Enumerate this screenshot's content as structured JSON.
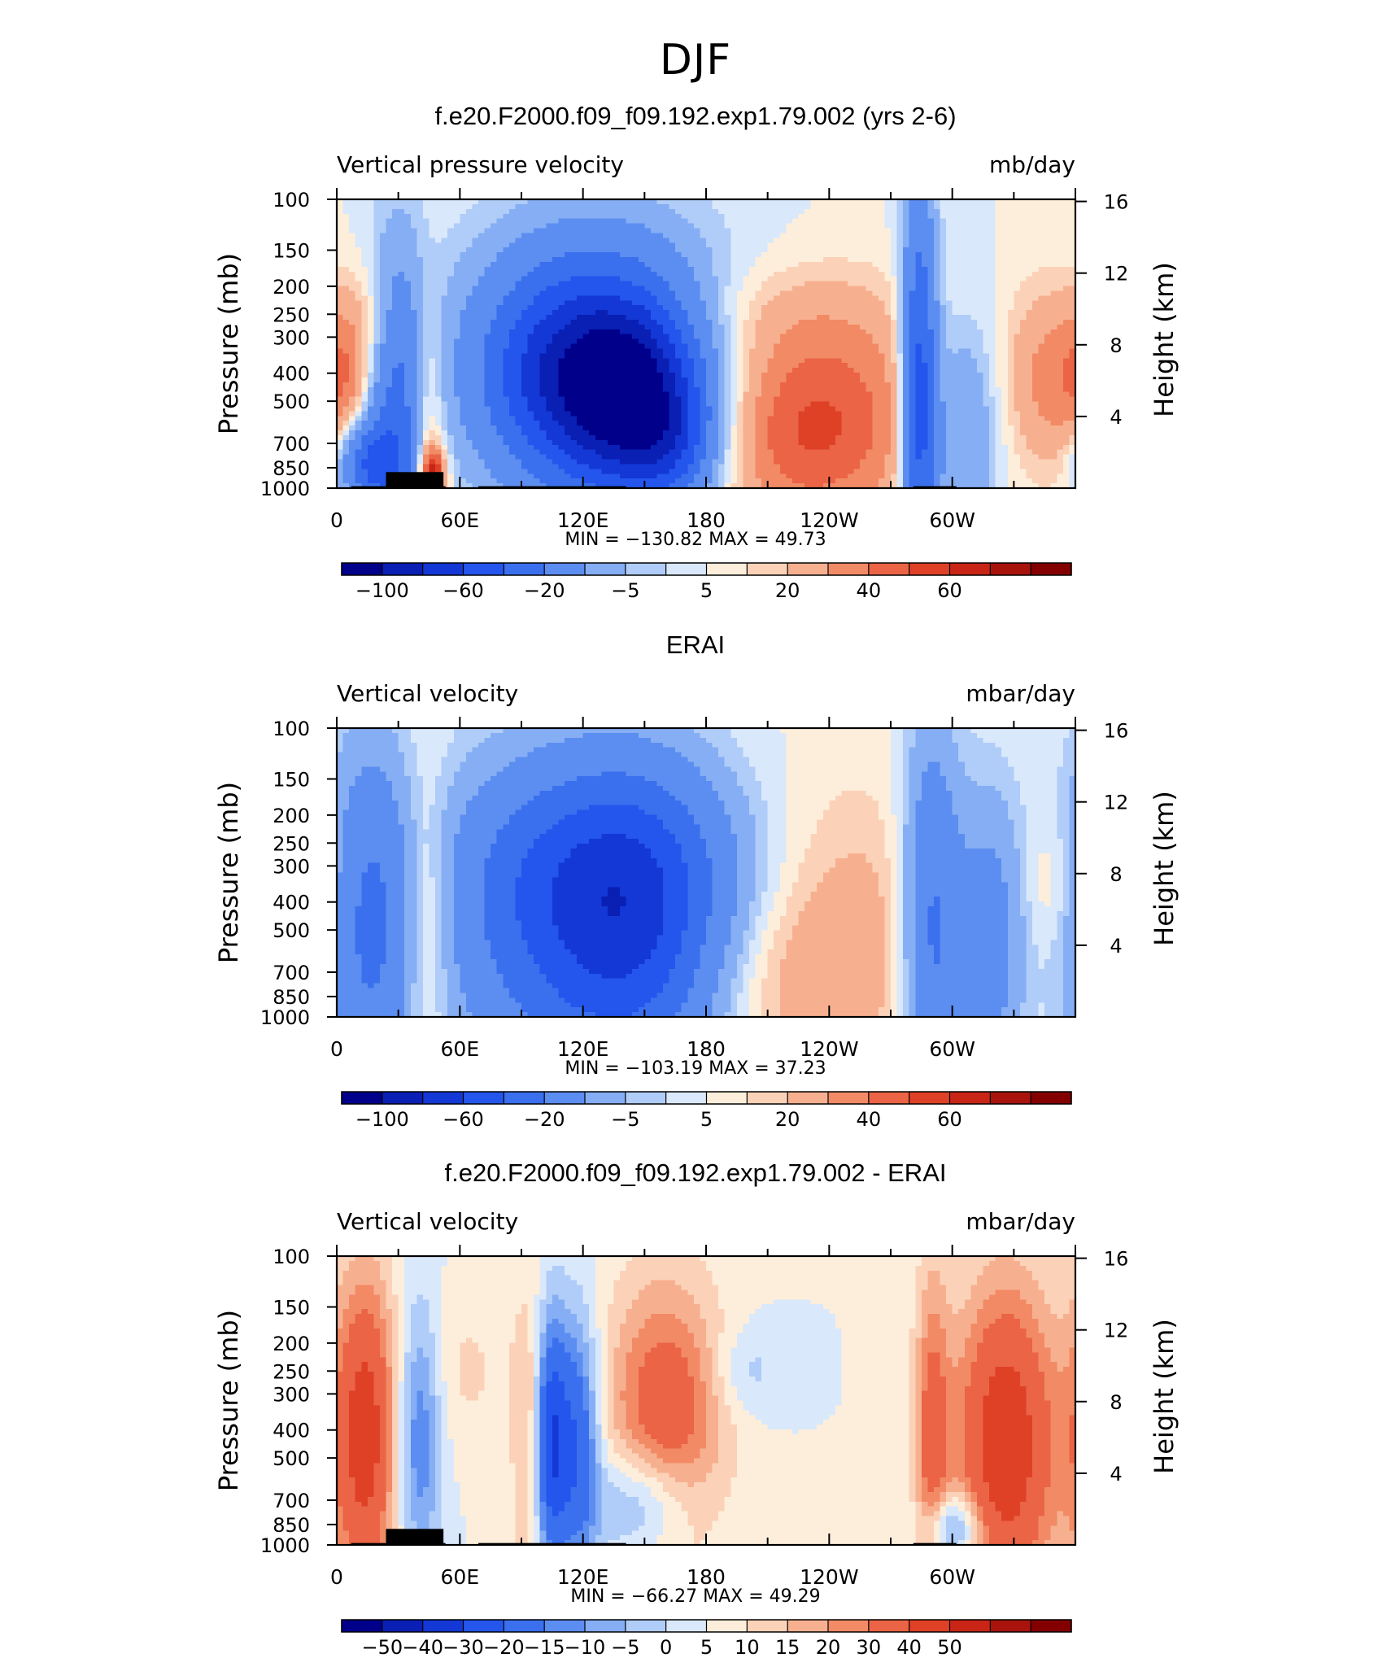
{
  "figure": {
    "main_title": "DJF"
  },
  "colors": {
    "cool": [
      "#00008b",
      "#0a1fb4",
      "#1338d6",
      "#2455ec",
      "#3a70ee",
      "#5c8df0",
      "#85aef4",
      "#b0ccf8",
      "#d9e8fb"
    ],
    "warm": [
      "#fdeedb",
      "#fbd2b8",
      "#f7b08f",
      "#f28a66",
      "#ea6445",
      "#df4126",
      "#c92516",
      "#a8140c",
      "#840000"
    ],
    "land_mask": "#000000"
  },
  "chart_data": [
    {
      "type": "heatmap",
      "title": "f.e20.F2000.f09_f09.192.exp1.79.002 (yrs 2-6)",
      "left_label": "Vertical pressure velocity",
      "units": "mb/day",
      "ylabel": "Pressure (mb)",
      "ylabel_right": "Height (km)",
      "stats": "MIN = −130.82   MAX =   49.73",
      "colorbar_labels": [
        "−100",
        "−60",
        "−20",
        "−5",
        "5",
        "20",
        "40",
        "60"
      ],
      "x_tick_labels": [
        "0",
        "60E",
        "120E",
        "180",
        "120W",
        "60W"
      ],
      "y_tick_labels": [
        "100",
        "150",
        "200",
        "250",
        "300",
        "400",
        "500",
        "700",
        "850",
        "1000"
      ],
      "y_right_tick_labels": [
        "16",
        "12",
        "8",
        "4"
      ],
      "x_range": [
        0,
        360
      ],
      "y_range_mb": [
        1000,
        100
      ],
      "contour_levels": [
        -120,
        -100,
        -80,
        -60,
        -40,
        -20,
        -10,
        -5,
        0,
        5,
        10,
        20,
        30,
        40,
        50,
        60,
        70
      ],
      "min": -130.82,
      "max": 49.73,
      "features": [
        {
          "lon": 4,
          "p": 420,
          "value": 18,
          "lon_width": 8,
          "p_width": 200
        },
        {
          "lon": 16,
          "p": 260,
          "value": 12,
          "lon_width": 12,
          "p_width": 180
        },
        {
          "lon": 16,
          "p": 820,
          "value": -55,
          "lon_width": 10,
          "p_width": 140
        },
        {
          "lon": 30,
          "p": 550,
          "value": -45,
          "lon_width": 10,
          "p_width": 550
        },
        {
          "lon": 44,
          "p": 580,
          "value": 22,
          "lon_width": 6,
          "p_width": 420
        },
        {
          "lon": 47,
          "p": 900,
          "value": 58,
          "lon_width": 4,
          "p_width": 90
        },
        {
          "lon": 115,
          "p": 420,
          "value": -85,
          "lon_width": 30,
          "p_width": 360
        },
        {
          "lon": 147,
          "p": 500,
          "value": -80,
          "lon_width": 22,
          "p_width": 330
        },
        {
          "lon": 130,
          "p": 300,
          "value": -28,
          "lon_width": 45,
          "p_width": 420
        },
        {
          "lon": 165,
          "p": 700,
          "value": -32,
          "lon_width": 15,
          "p_width": 200
        },
        {
          "lon": 240,
          "p": 550,
          "value": 30,
          "lon_width": 34,
          "p_width": 360
        },
        {
          "lon": 222,
          "p": 700,
          "value": 16,
          "lon_width": 30,
          "p_width": 320
        },
        {
          "lon": 284,
          "p": 500,
          "value": -75,
          "lon_width": 6,
          "p_width": 650
        },
        {
          "lon": 305,
          "p": 650,
          "value": -25,
          "lon_width": 12,
          "p_width": 380
        },
        {
          "lon": 348,
          "p": 420,
          "value": 24,
          "lon_width": 15,
          "p_width": 300
        },
        {
          "lon": 200,
          "p": 250,
          "value": 8,
          "lon_width": 50,
          "p_width": 180
        }
      ]
    },
    {
      "type": "heatmap",
      "title": "ERAI",
      "left_label": "Vertical velocity",
      "units": "mbar/day",
      "ylabel": "Pressure (mb)",
      "ylabel_right": "Height (km)",
      "stats": "MIN = −103.19   MAX =   37.23",
      "colorbar_labels": [
        "−100",
        "−60",
        "−20",
        "−5",
        "5",
        "20",
        "40",
        "60"
      ],
      "x_tick_labels": [
        "0",
        "60E",
        "120E",
        "180",
        "120W",
        "60W"
      ],
      "y_tick_labels": [
        "100",
        "150",
        "200",
        "250",
        "300",
        "400",
        "500",
        "700",
        "850",
        "1000"
      ],
      "y_right_tick_labels": [
        "16",
        "12",
        "8",
        "4"
      ],
      "x_range": [
        0,
        360
      ],
      "y_range_mb": [
        1000,
        100
      ],
      "contour_levels": [
        -120,
        -100,
        -80,
        -60,
        -40,
        -20,
        -10,
        -5,
        0,
        5,
        10,
        20,
        30,
        40,
        50,
        60,
        70
      ],
      "min": -103.19,
      "max": 37.23,
      "features": [
        {
          "lon": 16,
          "p": 500,
          "value": -42,
          "lon_width": 14,
          "p_width": 620
        },
        {
          "lon": 44,
          "p": 450,
          "value": 18,
          "lon_width": 8,
          "p_width": 450
        },
        {
          "lon": 110,
          "p": 480,
          "value": -55,
          "lon_width": 38,
          "p_width": 520
        },
        {
          "lon": 150,
          "p": 480,
          "value": -50,
          "lon_width": 28,
          "p_width": 500
        },
        {
          "lon": 130,
          "p": 280,
          "value": -20,
          "lon_width": 50,
          "p_width": 300
        },
        {
          "lon": 250,
          "p": 500,
          "value": 14,
          "lon_width": 30,
          "p_width": 500
        },
        {
          "lon": 215,
          "p": 800,
          "value": 8,
          "lon_width": 35,
          "p_width": 300
        },
        {
          "lon": 290,
          "p": 500,
          "value": -45,
          "lon_width": 10,
          "p_width": 650
        },
        {
          "lon": 318,
          "p": 550,
          "value": -30,
          "lon_width": 12,
          "p_width": 500
        },
        {
          "lon": 350,
          "p": 350,
          "value": 8,
          "lon_width": 10,
          "p_width": 200
        }
      ]
    },
    {
      "type": "heatmap",
      "title": "f.e20.F2000.f09_f09.192.exp1.79.002 - ERAI",
      "left_label": "Vertical velocity",
      "units": "mbar/day",
      "ylabel": "Pressure (mb)",
      "ylabel_right": "Height (km)",
      "stats": "MIN =   −66.27   MAX =   49.29",
      "colorbar_labels": [
        "−50",
        "−40",
        "−30",
        "−20",
        "−15",
        "−10",
        "−5",
        "0",
        "5",
        "10",
        "15",
        "20",
        "30",
        "40",
        "50"
      ],
      "x_tick_labels": [
        "0",
        "60E",
        "120E",
        "180",
        "120W",
        "60W"
      ],
      "y_tick_labels": [
        "100",
        "150",
        "200",
        "250",
        "300",
        "400",
        "500",
        "700",
        "850",
        "1000"
      ],
      "y_right_tick_labels": [
        "16",
        "12",
        "8",
        "4"
      ],
      "x_range": [
        0,
        360
      ],
      "y_range_mb": [
        1000,
        100
      ],
      "contour_levels": [
        -60,
        -50,
        -40,
        -30,
        -20,
        -15,
        -10,
        -5,
        0,
        5,
        10,
        15,
        20,
        30,
        40,
        50,
        60
      ],
      "min": -66.27,
      "max": 49.29,
      "features": [
        {
          "lon": 14,
          "p": 420,
          "value": 35,
          "lon_width": 11,
          "p_width": 550
        },
        {
          "lon": 40,
          "p": 400,
          "value": -22,
          "lon_width": 8,
          "p_width": 450
        },
        {
          "lon": 104,
          "p": 440,
          "value": -42,
          "lon_width": 6,
          "p_width": 420
        },
        {
          "lon": 118,
          "p": 440,
          "value": -28,
          "lon_width": 7,
          "p_width": 420
        },
        {
          "lon": 95,
          "p": 450,
          "value": 16,
          "lon_width": 6,
          "p_width": 500
        },
        {
          "lon": 160,
          "p": 380,
          "value": 28,
          "lon_width": 20,
          "p_width": 480
        },
        {
          "lon": 150,
          "p": 720,
          "value": -22,
          "lon_width": 18,
          "p_width": 200
        },
        {
          "lon": 200,
          "p": 250,
          "value": -8,
          "lon_width": 12,
          "p_width": 150
        },
        {
          "lon": 290,
          "p": 450,
          "value": 22,
          "lon_width": 6,
          "p_width": 600
        },
        {
          "lon": 326,
          "p": 450,
          "value": 38,
          "lon_width": 18,
          "p_width": 550
        },
        {
          "lon": 300,
          "p": 880,
          "value": -24,
          "lon_width": 10,
          "p_width": 120
        },
        {
          "lon": 60,
          "p": 250,
          "value": 6,
          "lon_width": 20,
          "p_width": 300
        }
      ]
    }
  ]
}
